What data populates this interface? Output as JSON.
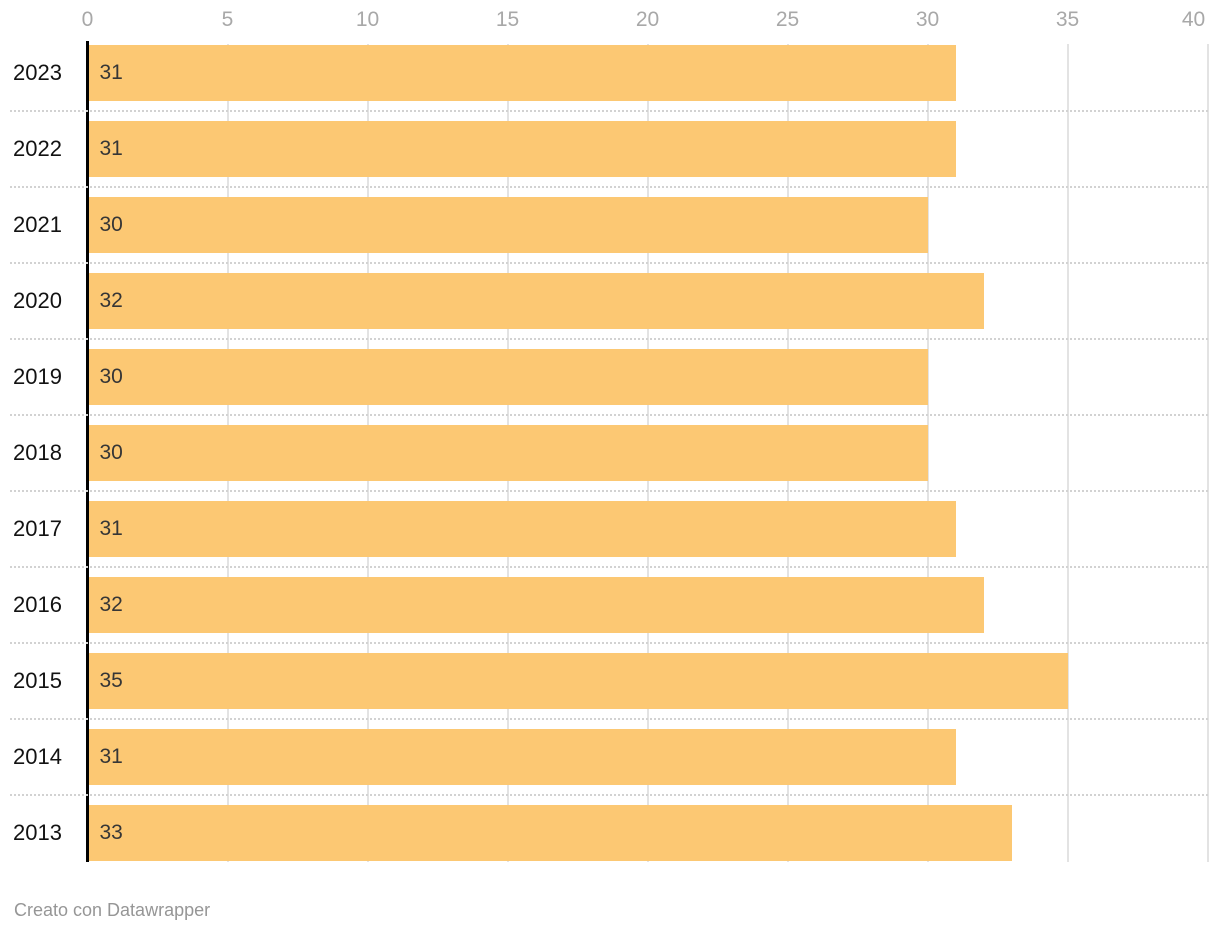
{
  "chart_data": {
    "type": "bar",
    "orientation": "horizontal",
    "categories": [
      "2023",
      "2022",
      "2021",
      "2020",
      "2019",
      "2018",
      "2017",
      "2016",
      "2015",
      "2014",
      "2013"
    ],
    "values": [
      31,
      31,
      30,
      32,
      30,
      30,
      31,
      32,
      35,
      31,
      33
    ],
    "x_ticks": [
      "0",
      "5",
      "10",
      "15",
      "20",
      "25",
      "30",
      "35",
      "40"
    ],
    "xlim": [
      0,
      40
    ],
    "grid": "vertical-solid-with-dotted-row-separators",
    "legend": "none",
    "colors": {
      "bar": "#FCC873",
      "tick_label": "#a8a8a8",
      "gridline": "#e3e3e3",
      "row_separator": "#d2d2d2",
      "category_label": "#121212",
      "value_label": "#363636",
      "axis_line": "#000000"
    }
  },
  "footer": {
    "credit": "Creato con Datawrapper"
  }
}
